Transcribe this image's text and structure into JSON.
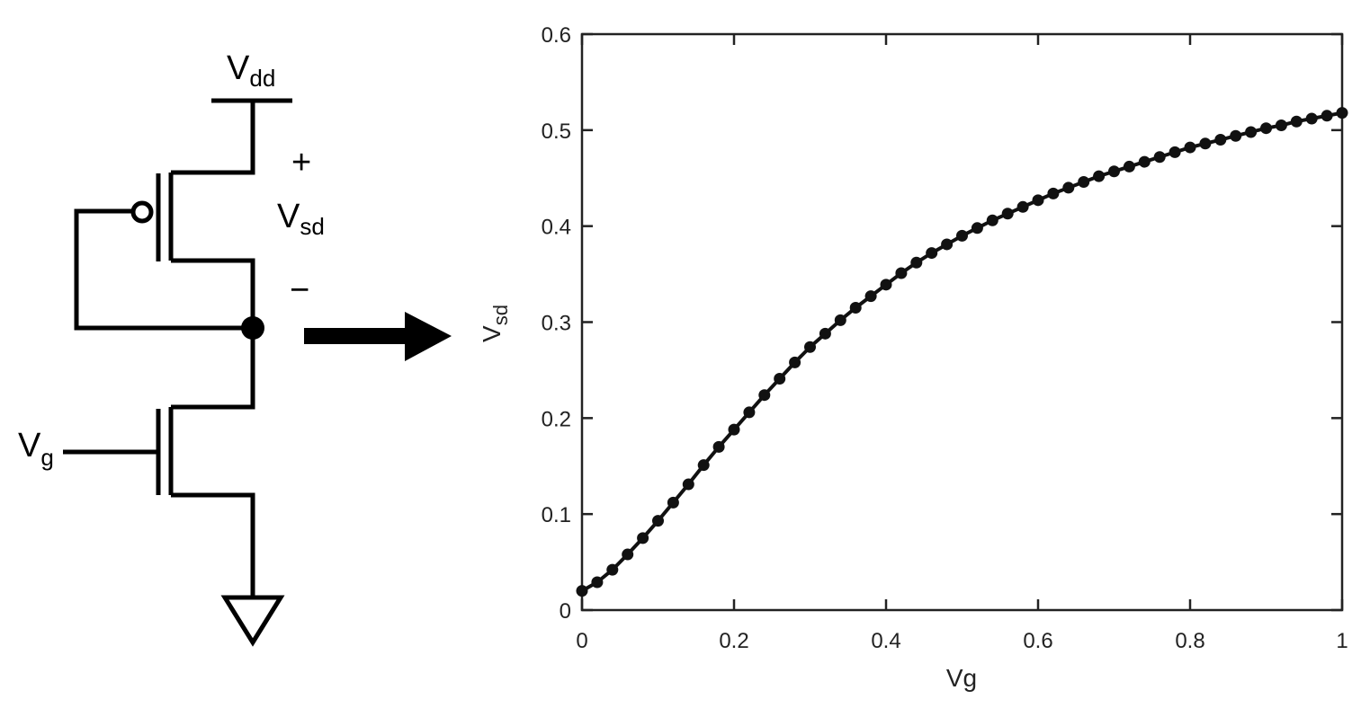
{
  "diagram": {
    "labels": [
      {
        "main": "V",
        "sub": "dd"
      },
      {
        "main": "+"
      },
      {
        "main": "V",
        "sub": "sd"
      },
      {
        "main": "−"
      },
      {
        "main": "V",
        "sub": "g"
      }
    ]
  },
  "chart_data": {
    "type": "line",
    "xlabel": "Vg",
    "ylabel": {
      "main": "V",
      "sub": "sd"
    },
    "xlim": [
      0,
      1
    ],
    "ylim": [
      0,
      0.6
    ],
    "xticks": [
      0,
      0.2,
      0.4,
      0.6,
      0.8,
      1
    ],
    "yticks": [
      0,
      0.1,
      0.2,
      0.3,
      0.4,
      0.5,
      0.6
    ],
    "x": [
      0,
      0.02,
      0.04,
      0.06,
      0.08,
      0.1,
      0.12,
      0.14,
      0.16,
      0.18,
      0.2,
      0.22,
      0.24,
      0.26,
      0.28,
      0.3,
      0.32,
      0.34,
      0.36,
      0.38,
      0.4,
      0.42,
      0.44,
      0.46,
      0.48,
      0.5,
      0.52,
      0.54,
      0.56,
      0.58,
      0.6,
      0.62,
      0.64,
      0.66,
      0.68,
      0.7,
      0.72,
      0.74,
      0.76,
      0.78,
      0.8,
      0.82,
      0.84,
      0.86,
      0.88,
      0.9,
      0.92,
      0.94,
      0.96,
      0.98,
      1
    ],
    "series": [
      {
        "color": "#111111",
        "values": [
          0.02,
          0.029,
          0.042,
          0.058,
          0.075,
          0.093,
          0.112,
          0.131,
          0.151,
          0.17,
          0.188,
          0.206,
          0.224,
          0.241,
          0.258,
          0.274,
          0.288,
          0.302,
          0.315,
          0.327,
          0.339,
          0.351,
          0.362,
          0.372,
          0.381,
          0.39,
          0.398,
          0.406,
          0.413,
          0.42,
          0.427,
          0.434,
          0.44,
          0.446,
          0.452,
          0.457,
          0.462,
          0.467,
          0.472,
          0.477,
          0.482,
          0.486,
          0.49,
          0.494,
          0.498,
          0.502,
          0.505,
          0.509,
          0.512,
          0.515,
          0.518
        ]
      }
    ]
  }
}
